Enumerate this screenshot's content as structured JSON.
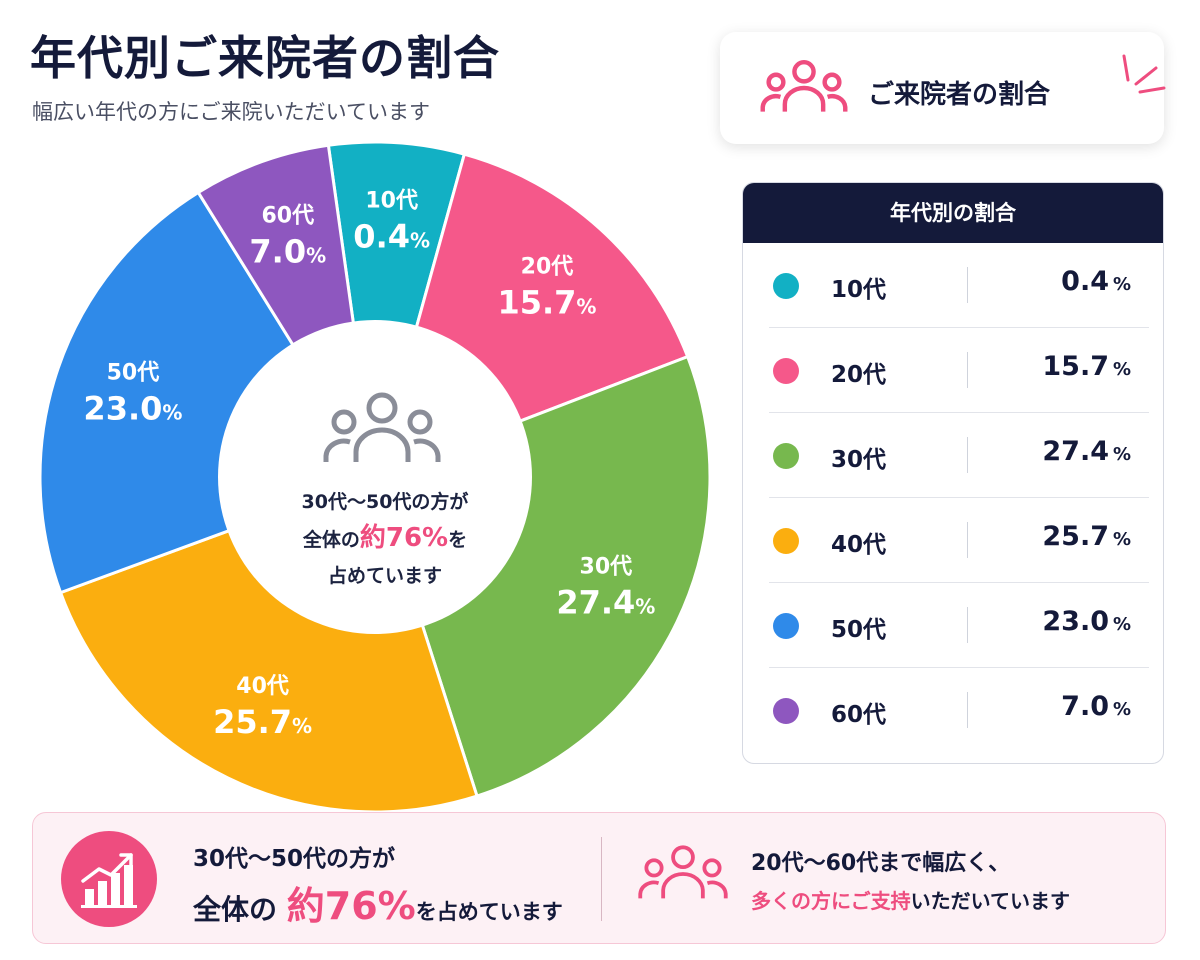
{
  "header": {
    "title": "年代別ご来院者の割合",
    "subtitle": "幅広い年代の方にご来院いただいています"
  },
  "badge": {
    "label": "ご来院者の割合",
    "icon": "people-icon"
  },
  "center": {
    "line1": "30代〜50代の方が",
    "line2_pre": "全体の",
    "line2_hl": "約76%",
    "line2_post": "を",
    "line3": "占めています"
  },
  "legend_table": {
    "heading": "年代別の割合",
    "rows": [
      {
        "label": "10代",
        "value": "0.4",
        "unit": "%"
      },
      {
        "label": "20代",
        "value": "15.7",
        "unit": "%"
      },
      {
        "label": "30代",
        "value": "27.4",
        "unit": "%"
      },
      {
        "label": "40代",
        "value": "25.7",
        "unit": "%"
      },
      {
        "label": "50代",
        "value": "23.0",
        "unit": "%"
      },
      {
        "label": "60代",
        "value": "7.0",
        "unit": "%"
      }
    ]
  },
  "chart_data": {
    "type": "pie",
    "title": "年代別ご来院者の割合",
    "categories": [
      "10代",
      "20代",
      "30代",
      "40代",
      "50代",
      "60代"
    ],
    "values": [
      0.4,
      15.7,
      27.4,
      25.7,
      23.0,
      7.0
    ],
    "value_labels": [
      "0.4",
      "15.7",
      "27.4",
      "25.7",
      "23.0",
      "7.0"
    ],
    "unit": "%",
    "colors": [
      "#12b0c4",
      "#f5588a",
      "#77b84e",
      "#fbae0f",
      "#2f8ae9",
      "#8e57bf"
    ],
    "donut": true
  },
  "bottom": {
    "left_icon": "chart-up-icon",
    "left_line1": "30代〜50代の方が",
    "left_line2_pre": "全体の",
    "left_line2_hl": "約76%",
    "left_line2_post": "を占めています",
    "right_icon": "people-icon",
    "right_line1": "20代〜60代まで幅広く、",
    "right_line2_hl": "多くの方にご支持",
    "right_line2_post": "いただいています"
  },
  "colors": {
    "accent": "#ee4d7f",
    "navy": "#141a3a"
  }
}
